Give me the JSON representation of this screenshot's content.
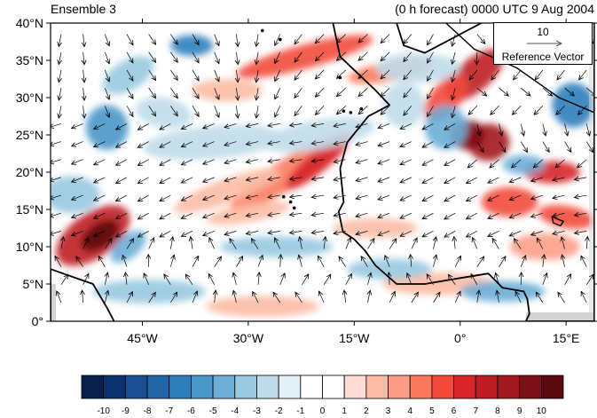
{
  "header": {
    "left_title": "Ensemble 3",
    "right_title": "(0 h forecast) 0000 UTC 9 Aug 2004"
  },
  "map": {
    "lat_labels": [
      "40°N",
      "35°N",
      "30°N",
      "25°N",
      "20°N",
      "15°N",
      "10°N",
      "5°N",
      "0°"
    ],
    "lon_labels": [
      "45°W",
      "30°W",
      "15°W",
      "0°",
      "15°E"
    ],
    "extent": {
      "lon_min": -58,
      "lon_max": 19,
      "lat_min": 0,
      "lat_max": 40
    },
    "land_mask_color": "#d3d3d3"
  },
  "reference_vector": {
    "magnitude": "10",
    "label": "Reference Vector"
  },
  "colorbar": {
    "labels": [
      "-10",
      "-9",
      "-8",
      "-7",
      "-6",
      "-5",
      "-4",
      "-3",
      "-2",
      "-1",
      "0",
      "1",
      "2",
      "3",
      "4",
      "5",
      "6",
      "7",
      "8",
      "9",
      "10"
    ],
    "colors": [
      "#08204a",
      "#0a3270",
      "#1a4f94",
      "#2366a8",
      "#2f7ebc",
      "#4a97c9",
      "#6caed6",
      "#98c9e0",
      "#c0dcea",
      "#e2f0f8",
      "#ffffff",
      "#ffffff",
      "#fddcd6",
      "#fcbba4",
      "#fc9e86",
      "#fb7a5e",
      "#f24a3c",
      "#d7252a",
      "#bf1d24",
      "#a21a1f",
      "#7d1018",
      "#5b0a10"
    ]
  }
}
